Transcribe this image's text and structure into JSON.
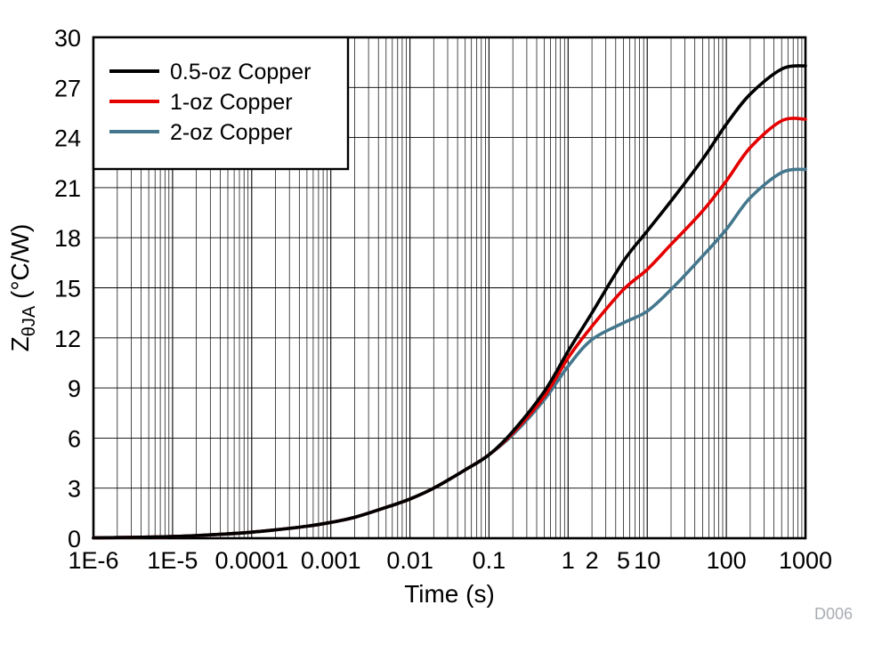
{
  "figure": {
    "watermark": "D006",
    "watermark_color": "#a9adb2"
  },
  "chart_data": {
    "type": "line",
    "title": "",
    "xlabel": "Time (s)",
    "ylabel": "ZθJA (°C/W)",
    "ylabel_prefix": "Z",
    "ylabel_sub": "θJA",
    "ylabel_suffix": " (°C/W)",
    "xscale": "log",
    "xlim": [
      1e-06,
      1000
    ],
    "ylim": [
      0,
      30
    ],
    "grid": true,
    "legend_position": "top-left",
    "x_ticks": [
      {
        "v": 1e-06,
        "label": "1E-6"
      },
      {
        "v": 1e-05,
        "label": "1E-5"
      },
      {
        "v": 0.0001,
        "label": "0.0001"
      },
      {
        "v": 0.001,
        "label": "0.001"
      },
      {
        "v": 0.01,
        "label": "0.01"
      },
      {
        "v": 0.1,
        "label": "0.1"
      },
      {
        "v": 1,
        "label": "1"
      },
      {
        "v": 2,
        "label": "2"
      },
      {
        "v": 5,
        "label": "5"
      },
      {
        "v": 10,
        "label": "10"
      },
      {
        "v": 100,
        "label": "100"
      },
      {
        "v": 1000,
        "label": "1000"
      }
    ],
    "y_ticks": [
      0,
      3,
      6,
      9,
      12,
      15,
      18,
      21,
      24,
      27,
      30
    ],
    "x": [
      1e-06,
      2e-06,
      5e-06,
      1e-05,
      2e-05,
      5e-05,
      0.0001,
      0.0002,
      0.0005,
      0.001,
      0.002,
      0.005,
      0.01,
      0.02,
      0.05,
      0.1,
      0.2,
      0.5,
      1,
      2,
      5,
      10,
      20,
      50,
      100,
      200,
      500,
      1000
    ],
    "series": [
      {
        "name": "0.5-oz Copper",
        "color": "#000000",
        "values": [
          0.02,
          0.04,
          0.07,
          0.1,
          0.16,
          0.26,
          0.36,
          0.5,
          0.72,
          0.95,
          1.25,
          1.85,
          2.35,
          3.0,
          4.1,
          5.0,
          6.4,
          8.8,
          11.2,
          13.5,
          16.6,
          18.4,
          20.2,
          22.7,
          24.8,
          26.6,
          28.1,
          28.3
        ]
      },
      {
        "name": "1-oz Copper",
        "color": "#e50000",
        "values": [
          0.02,
          0.04,
          0.07,
          0.1,
          0.16,
          0.26,
          0.36,
          0.5,
          0.72,
          0.95,
          1.25,
          1.85,
          2.35,
          3.0,
          4.1,
          5.0,
          6.3,
          8.5,
          10.8,
          12.7,
          14.9,
          16.1,
          17.6,
          19.6,
          21.4,
          23.4,
          25.0,
          25.1
        ]
      },
      {
        "name": "2-oz Copper",
        "color": "#44778d",
        "values": [
          0.02,
          0.04,
          0.07,
          0.1,
          0.16,
          0.26,
          0.36,
          0.5,
          0.72,
          0.95,
          1.25,
          1.85,
          2.35,
          3.0,
          4.1,
          5.0,
          6.2,
          8.3,
          10.3,
          11.9,
          12.9,
          13.6,
          14.9,
          16.9,
          18.5,
          20.4,
          21.9,
          22.1
        ]
      }
    ]
  }
}
